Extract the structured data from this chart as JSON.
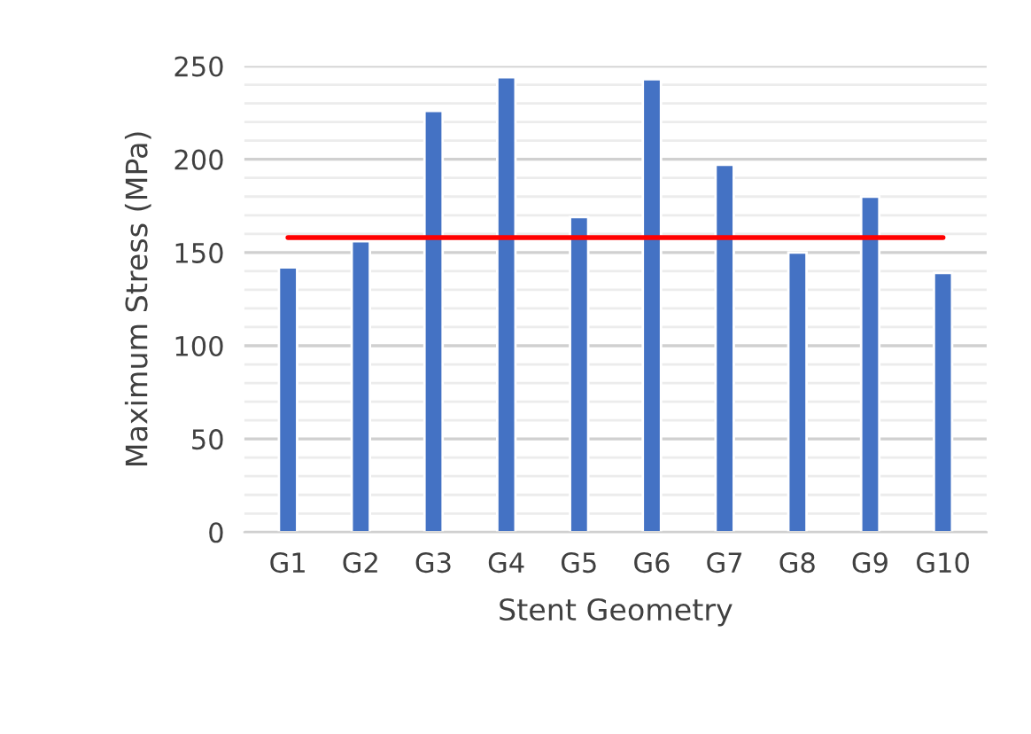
{
  "chart_data": {
    "type": "bar",
    "xlabel": "Stent Geometry",
    "ylabel": "Maximum Stress (MPa)",
    "categories": [
      "G1",
      "G2",
      "G3",
      "G4",
      "G5",
      "G6",
      "G7",
      "G8",
      "G9",
      "G10"
    ],
    "series": [
      {
        "color": "#4472c4",
        "values": [
          142,
          156,
          226,
          244,
          169,
          243,
          197,
          150,
          180,
          139
        ]
      },
      {
        "type": "line",
        "color": "#ff0000",
        "values": [
          158,
          158,
          158,
          158,
          158,
          158,
          158,
          158,
          158,
          158
        ]
      }
    ],
    "ylim": [
      0,
      250
    ],
    "yticks": [
      0,
      50,
      100,
      150,
      200,
      250
    ],
    "grid": "y",
    "legend": false
  }
}
